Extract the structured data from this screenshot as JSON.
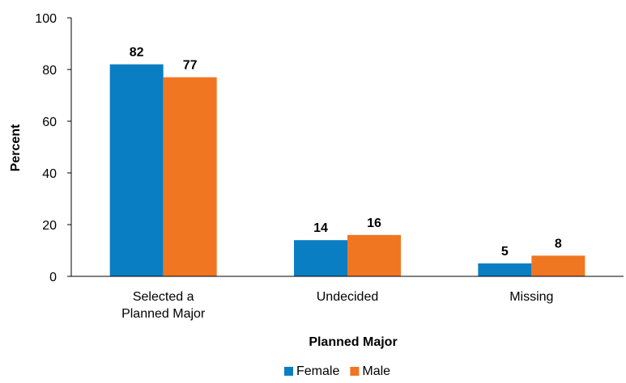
{
  "chart_data": {
    "type": "bar",
    "categories": [
      [
        "Selected a",
        "Planned Major"
      ],
      [
        "Undecided"
      ],
      [
        "Missing"
      ]
    ],
    "series": [
      {
        "name": "Female",
        "values": [
          82,
          14,
          5
        ],
        "color": "#0a7ec2"
      },
      {
        "name": "Male",
        "values": [
          77,
          16,
          8
        ],
        "color": "#f07622"
      }
    ],
    "xlabel": "Planned Major",
    "ylabel": "Percent",
    "ylim": [
      0,
      100
    ],
    "yticks": [
      0,
      20,
      40,
      60,
      80,
      100
    ],
    "grid": false,
    "legend_position": "bottom"
  }
}
